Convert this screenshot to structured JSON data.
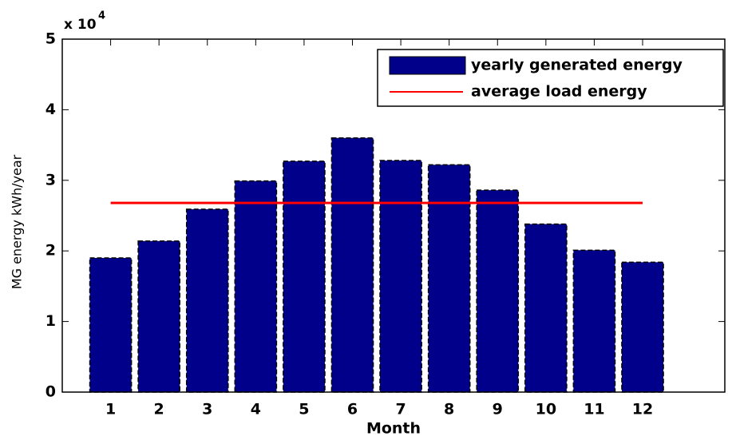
{
  "chart_data": {
    "type": "bar",
    "x_label": "Month",
    "y_label": "MG energy kWh/year",
    "y_multiplier": {
      "base": "x 10",
      "exponent": "4"
    },
    "x": [
      1,
      2,
      3,
      4,
      5,
      6,
      7,
      8,
      9,
      10,
      11,
      12
    ],
    "xlim": [
      0,
      13.7
    ],
    "xticks": [
      1,
      2,
      3,
      4,
      5,
      6,
      7,
      8,
      9,
      10,
      11,
      12
    ],
    "ylim": [
      0,
      5
    ],
    "yticks": [
      0,
      1,
      2,
      3,
      4,
      5
    ],
    "grid": false,
    "legend": "top-right",
    "series": [
      {
        "name": "yearly generated energy",
        "color": "#00008b",
        "type": "bar",
        "values": [
          1.9,
          2.14,
          2.59,
          2.99,
          3.27,
          3.6,
          3.28,
          3.22,
          2.86,
          2.38,
          2.01,
          1.84
        ]
      },
      {
        "name": "average load energy",
        "color": "#ff0000",
        "type": "line",
        "values": [
          2.68,
          2.68,
          2.68,
          2.68,
          2.68,
          2.68,
          2.68,
          2.68,
          2.68,
          2.68,
          2.68,
          2.68
        ]
      }
    ]
  }
}
